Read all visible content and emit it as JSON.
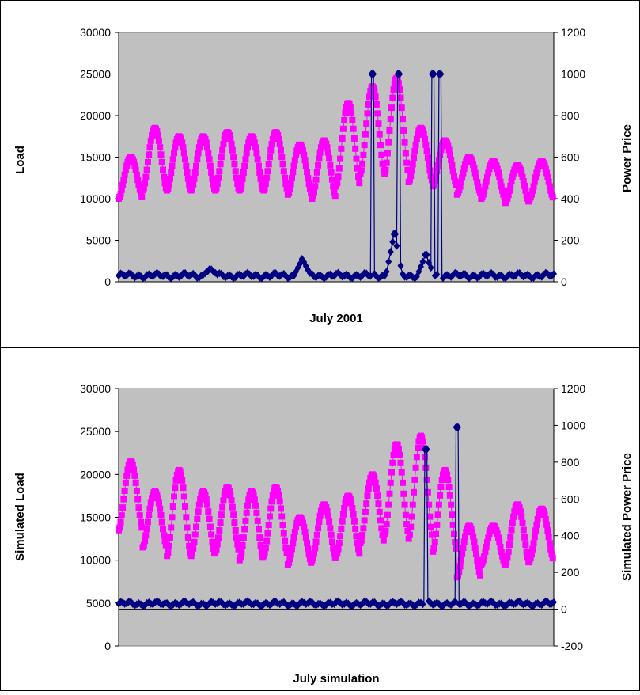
{
  "chart_data": [
    {
      "type": "line",
      "xlabel": "July 2001",
      "ylabel": "Load",
      "y2label": "Power Price",
      "ylim": [
        0,
        30000
      ],
      "y2lim": [
        0,
        1200
      ],
      "yticks": [
        "0",
        "5000",
        "10000",
        "15000",
        "20000",
        "25000",
        "30000"
      ],
      "y2ticks": [
        "0",
        "200",
        "400",
        "600",
        "800",
        "1000",
        "1200"
      ],
      "plot_background": "#c0c0c0",
      "grid": false,
      "legend": "none",
      "series": [
        {
          "axis": "left",
          "color": "#ff00ff",
          "marker": "square",
          "daily_peaks": [
            15000,
            18500,
            17500,
            17500,
            18000,
            17500,
            18000,
            16500,
            17000,
            21500,
            23500,
            24500,
            18500,
            17000,
            15000,
            14500,
            14000,
            14500
          ],
          "daily_troughs": [
            10000,
            11000,
            11000,
            11000,
            11000,
            11000,
            11000,
            10500,
            10000,
            11500,
            13000,
            13000,
            12000,
            11500,
            10500,
            10000,
            9500,
            10000
          ]
        },
        {
          "axis": "right",
          "color": "#000080",
          "marker": "diamond",
          "baseline": 30,
          "spikes": [
            {
              "day": 3.8,
              "value": 60
            },
            {
              "day": 7.6,
              "value": 110
            },
            {
              "day": 10.5,
              "value": 1000
            },
            {
              "day": 11.6,
              "value": 1000
            },
            {
              "day": 11.4,
              "value": 230
            },
            {
              "day": 13.0,
              "value": 1000
            },
            {
              "day": 13.3,
              "value": 1000
            },
            {
              "day": 12.7,
              "value": 130
            }
          ]
        }
      ]
    },
    {
      "type": "line",
      "xlabel": "July simulation",
      "ylabel": "Simulated Load",
      "y2label": "Simulated Power Price",
      "ylim": [
        0,
        30000
      ],
      "y2lim": [
        -200,
        1200
      ],
      "yticks": [
        "0",
        "5000",
        "10000",
        "15000",
        "20000",
        "25000",
        "30000"
      ],
      "y2ticks": [
        "-200",
        "0",
        "200",
        "400",
        "600",
        "800",
        "1000",
        "1200"
      ],
      "plot_background": "#c0c0c0",
      "grid": false,
      "legend": "none",
      "series": [
        {
          "axis": "left",
          "color": "#ff00ff",
          "marker": "square",
          "daily_peaks": [
            21500,
            18000,
            20500,
            18000,
            18500,
            18000,
            18500,
            15000,
            16500,
            17500,
            20000,
            23500,
            24500,
            20500,
            14000,
            14000,
            16500,
            16000
          ],
          "daily_troughs": [
            13500,
            11500,
            10500,
            10500,
            11000,
            10000,
            10500,
            9500,
            10000,
            10500,
            12000,
            13000,
            12500,
            11000,
            8000,
            9500,
            9500,
            10000
          ],
          "start_value": 15000
        },
        {
          "axis": "right",
          "color": "#000080",
          "marker": "diamond",
          "baseline": 30,
          "spikes": [
            {
              "day": 12.7,
              "value": 870
            },
            {
              "day": 14.0,
              "value": 990
            }
          ]
        }
      ]
    }
  ]
}
